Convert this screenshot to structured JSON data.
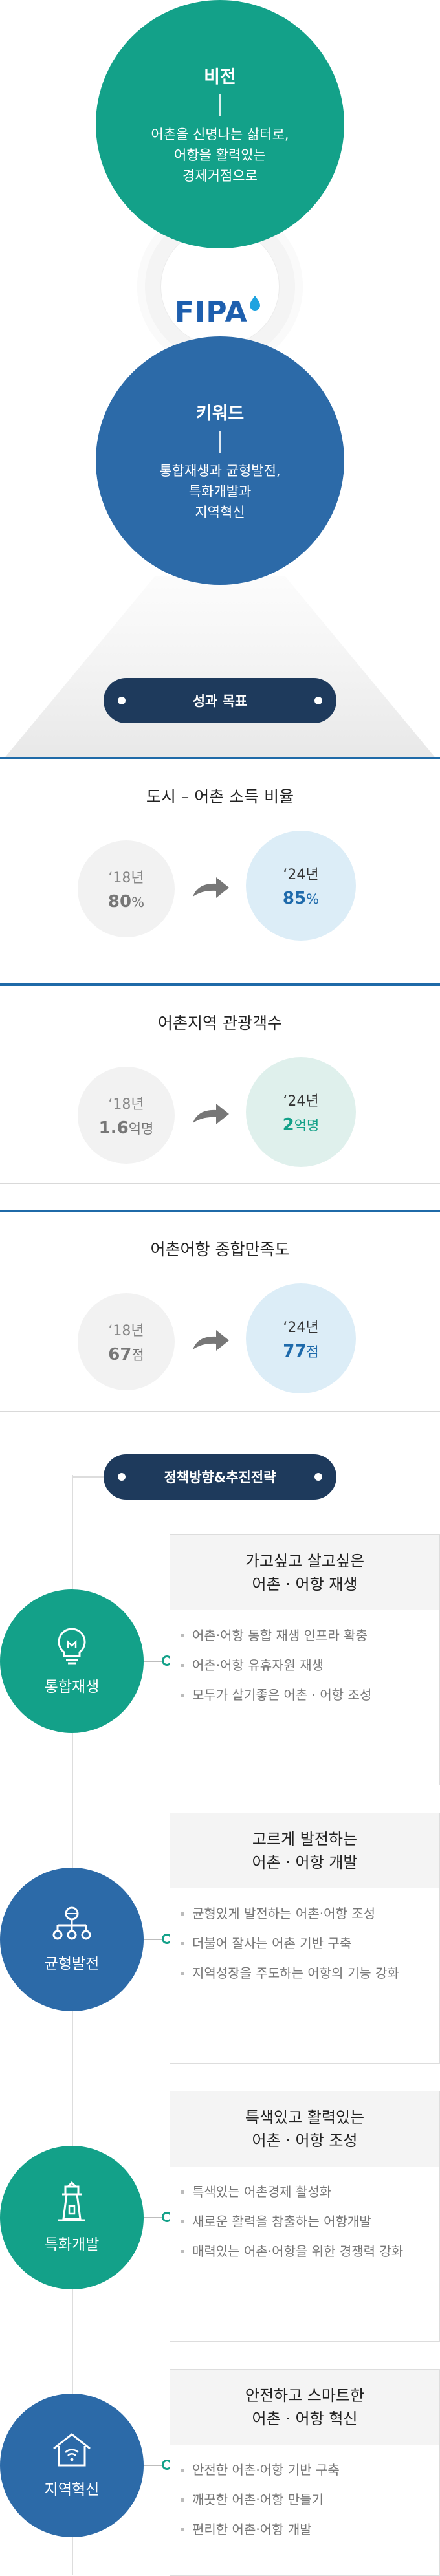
{
  "vision": {
    "title": "비전",
    "lines": [
      "어촌을 신명나는 삶터로,",
      "어항을 활력있는",
      "경제거점으로"
    ],
    "color": "#13a189"
  },
  "logo": {
    "text": "FIPA"
  },
  "keyword": {
    "title": "키워드",
    "lines": [
      "통합재생과 균형발전,",
      "특화개발과",
      "지역혁신"
    ],
    "color": "#2c6aa8"
  },
  "goals": {
    "pill_label": "성과 목표",
    "cards": [
      {
        "title": "도시 – 어촌 소득 비율",
        "before": {
          "year": "‘18년",
          "value": "80",
          "unit": "%"
        },
        "after": {
          "year": "‘24년",
          "value": "85",
          "unit": "%"
        },
        "after_color": "#1e6aab"
      },
      {
        "title": "어촌지역 관광객수",
        "before": {
          "year": "‘18년",
          "value": "1.6",
          "unit": "억명"
        },
        "after": {
          "year": "‘24년",
          "value": "2",
          "unit": "억명"
        },
        "after_color": "#13a189"
      },
      {
        "title": "어촌어항 종합만족도",
        "before": {
          "year": "‘18년",
          "value": "67",
          "unit": "점"
        },
        "after": {
          "year": "‘24년",
          "value": "77",
          "unit": "점"
        },
        "after_color": "#1e6aab"
      }
    ]
  },
  "strategy": {
    "pill_label": "정책방향&추진전략",
    "items": [
      {
        "label": "통합재생",
        "icon": "lightbulb-icon",
        "color": "#13a189",
        "heading": [
          "가고싶고 살고싶은",
          "어촌 · 어항 재생"
        ],
        "points": [
          "어촌·어항 통합 재생 인프라 확충",
          "어촌·어항 유휴자원 재생",
          "모두가 살기좋은 어촌 · 어항 조성"
        ]
      },
      {
        "label": "균형발전",
        "icon": "network-icon",
        "color": "#2c6aa8",
        "heading": [
          "고르게 발전하는",
          "어촌 · 어항 개발"
        ],
        "points": [
          "균형있게 발전하는 어촌·어항 조성",
          "더불어 잘사는 어촌 기반 구축",
          "지역성장을 주도하는 어항의 기능 강화"
        ]
      },
      {
        "label": "특화개발",
        "icon": "lighthouse-icon",
        "color": "#13a189",
        "heading": [
          "특색있고 활력있는",
          "어촌 · 어항 조성"
        ],
        "points": [
          "특색있는 어촌경제 활성화",
          "새로운 활력을 창출하는 어항개발",
          "매력있는 어촌·어항을 위한 경쟁력 강화"
        ]
      },
      {
        "label": "지역혁신",
        "icon": "smart-home-icon",
        "color": "#2c6aa8",
        "heading": [
          "안전하고 스마트한",
          "어촌 · 어항 혁신"
        ],
        "points": [
          "안전한 어촌·어항 기반 구축",
          "깨끗한 어촌·어항 만들기",
          "편리한 어촌·어항 개발"
        ]
      }
    ]
  }
}
